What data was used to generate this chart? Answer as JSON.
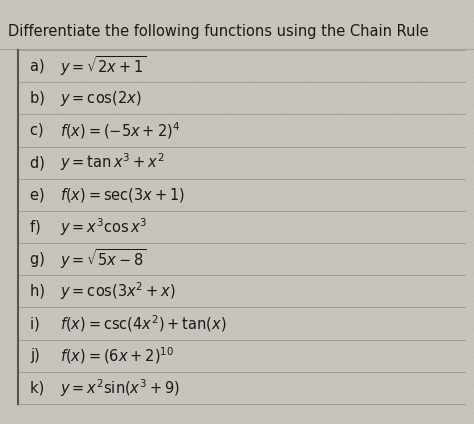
{
  "title": "Differentiate the following functions using the Chain Rule",
  "bg_color": "#c8c4bc",
  "paper_color": "#d8d4cc",
  "line_color": "#b8b4ac",
  "text_color": "#1a1a1a",
  "title_fontsize": 10.5,
  "item_fontsize": 10.5,
  "items": [
    {
      "label": "a)  ",
      "expr": "$y = \\sqrt{2x + 1}$"
    },
    {
      "label": "b)  ",
      "expr": "$y = \\cos(2x)$"
    },
    {
      "label": "c)  ",
      "expr": "$f(x) = (-5x + 2)^4$"
    },
    {
      "label": "d)  ",
      "expr": "$y = \\tan x^3 + x^2$"
    },
    {
      "label": "e)  ",
      "expr": "$f(x) = \\sec(3x+1)$"
    },
    {
      "label": "f)   ",
      "expr": "$y = x^3 \\cos x^3$"
    },
    {
      "label": "g)  ",
      "expr": "$y = \\sqrt{5x - 8}$"
    },
    {
      "label": "h)  ",
      "expr": "$y = \\cos(3x^2 + x)$"
    },
    {
      "label": "i)   ",
      "expr": "$f(x) = \\csc(4x^2) + \\tan(x)$"
    },
    {
      "label": "j)   ",
      "expr": "$f(x) = (6x + 2)^{10}$"
    },
    {
      "label": "k)  ",
      "expr": "$y = x^2 \\sin(x^3 + 9)$"
    }
  ]
}
